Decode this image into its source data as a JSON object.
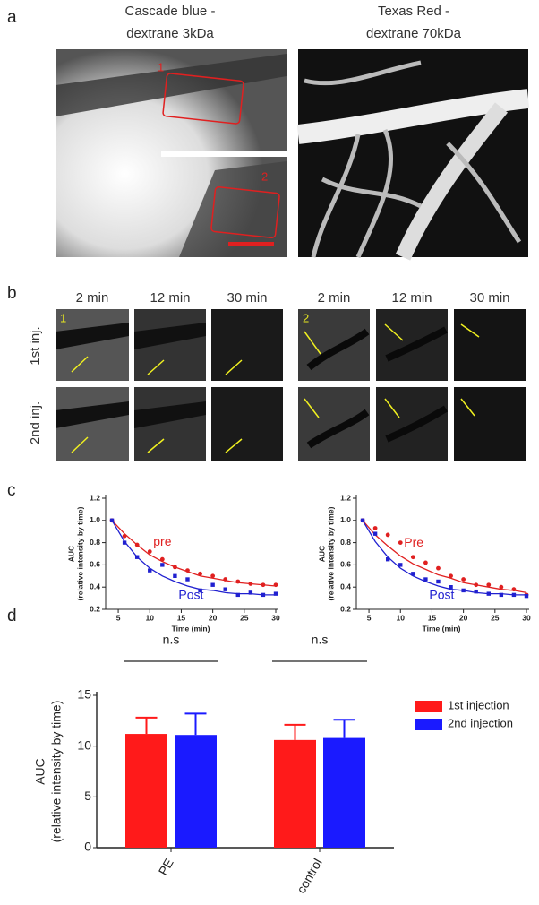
{
  "panels": {
    "a": {
      "label": "a",
      "left_title": [
        "Cascade blue -",
        "dextrane 3kDa"
      ],
      "right_title": [
        "Texas Red -",
        "dextrane 70kDa"
      ],
      "roi_labels": [
        "1",
        "2"
      ]
    },
    "b": {
      "label": "b",
      "times": [
        "2 min",
        "12 min",
        "30 min",
        "2 min",
        "12 min",
        "30 min"
      ],
      "rows": [
        "1st inj.",
        "2nd inj."
      ],
      "roi_labels": [
        "1",
        "2"
      ]
    },
    "c": {
      "label": "c"
    },
    "d": {
      "label": "d"
    }
  },
  "chart_data": [
    {
      "type": "scatter",
      "x_label": "Time (min)",
      "y_label": [
        "AUC",
        "(relative intensity by time)"
      ],
      "x": [
        4,
        6,
        8,
        10,
        12,
        14,
        16,
        18,
        20,
        22,
        24,
        26,
        28,
        30
      ],
      "xlim": [
        3,
        30
      ],
      "xticks": [
        5,
        10,
        15,
        20,
        25,
        30
      ],
      "ylim": [
        0.2,
        1.2
      ],
      "yticks": [
        0.2,
        0.4,
        0.6,
        0.8,
        {
          "value": 1,
          "label": "1.0"
        },
        1.2
      ],
      "series": [
        {
          "name": "pre",
          "color": "#e02020",
          "marker": "circle",
          "values": [
            1.0,
            0.86,
            0.78,
            0.72,
            0.65,
            0.58,
            0.55,
            0.52,
            0.5,
            0.47,
            0.45,
            0.43,
            0.42,
            0.42
          ],
          "fit": [
            1.0,
            0.88,
            0.78,
            0.69,
            0.63,
            0.58,
            0.54,
            0.5,
            0.48,
            0.46,
            0.44,
            0.43,
            0.42,
            0.41
          ]
        },
        {
          "name": "Post",
          "color": "#2020d0",
          "marker": "square",
          "values": [
            1.0,
            0.8,
            0.67,
            0.55,
            0.6,
            0.5,
            0.47,
            0.37,
            0.42,
            0.38,
            0.33,
            0.35,
            0.33,
            0.34
          ],
          "fit": [
            1.0,
            0.81,
            0.67,
            0.57,
            0.5,
            0.45,
            0.41,
            0.38,
            0.37,
            0.35,
            0.34,
            0.34,
            0.33,
            0.33
          ]
        }
      ]
    },
    {
      "type": "scatter",
      "x_label": "Time (min)",
      "y_label": [
        "AUC",
        "(relative intensity by time)"
      ],
      "x": [
        4,
        6,
        8,
        10,
        12,
        14,
        16,
        18,
        20,
        22,
        24,
        26,
        28,
        30
      ],
      "xlim": [
        3,
        30
      ],
      "xticks": [
        5,
        10,
        15,
        20,
        25,
        30
      ],
      "ylim": [
        0.2,
        1.2
      ],
      "yticks": [
        0.2,
        0.4,
        0.6,
        0.8,
        {
          "value": 1,
          "label": "1.0"
        },
        1.2
      ],
      "series": [
        {
          "name": "Pre",
          "color": "#e02020",
          "marker": "circle",
          "values": [
            1.0,
            0.93,
            0.87,
            0.8,
            0.67,
            0.62,
            0.57,
            0.5,
            0.47,
            0.42,
            0.42,
            0.4,
            0.38,
            0.33
          ],
          "fit": [
            1.0,
            0.87,
            0.77,
            0.68,
            0.61,
            0.56,
            0.51,
            0.48,
            0.44,
            0.42,
            0.4,
            0.38,
            0.37,
            0.35
          ]
        },
        {
          "name": "Post",
          "color": "#2020d0",
          "marker": "square",
          "values": [
            1.0,
            0.88,
            0.65,
            0.6,
            0.52,
            0.47,
            0.45,
            0.4,
            0.37,
            0.36,
            0.34,
            0.33,
            0.33,
            0.32
          ],
          "fit": [
            1.0,
            0.81,
            0.67,
            0.57,
            0.5,
            0.45,
            0.41,
            0.38,
            0.37,
            0.35,
            0.34,
            0.34,
            0.33,
            0.33
          ]
        }
      ]
    },
    {
      "type": "bar",
      "y_label": [
        "AUC",
        "(relative intensity by time)"
      ],
      "categories": [
        "PE",
        "control"
      ],
      "annotations": [
        "n.s",
        "n.s"
      ],
      "ylim": [
        0,
        15
      ],
      "yticks": [
        0,
        5,
        10,
        15
      ],
      "legend": "top-right",
      "series": [
        {
          "name": "1st injection",
          "color": "#ff1a1a",
          "values": [
            11.2,
            10.6
          ],
          "errors": [
            1.6,
            1.5
          ]
        },
        {
          "name": "2nd injection",
          "color": "#1a1aff",
          "values": [
            11.1,
            10.8
          ],
          "errors": [
            2.1,
            1.8
          ]
        }
      ]
    }
  ]
}
